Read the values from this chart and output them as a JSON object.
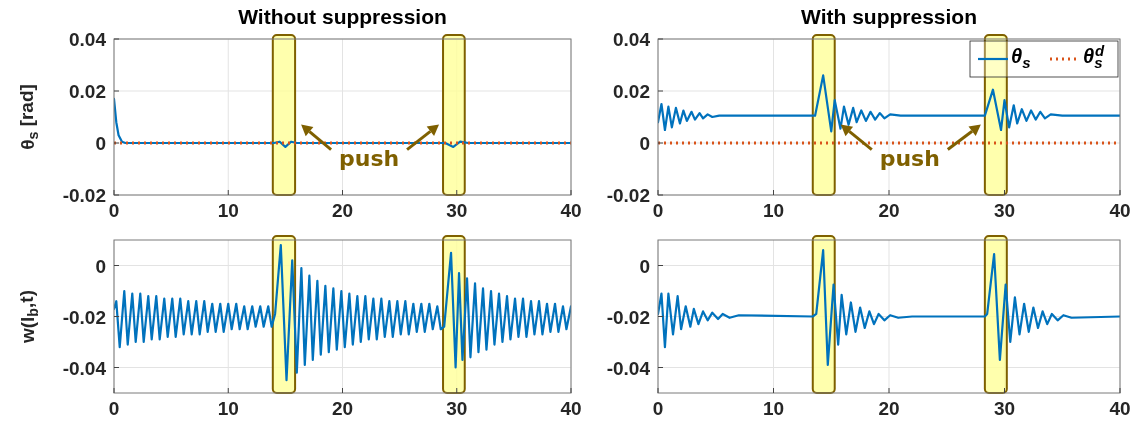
{
  "chart_data": [
    {
      "type": "line",
      "title": "Without suppression",
      "ylabel": "θ$_{s}$ [rad]",
      "xlim": [
        0,
        40
      ],
      "xticks": [
        0,
        10,
        20,
        30,
        40
      ],
      "ylim": [
        -0.02,
        0.04
      ],
      "yticks": [
        -0.02,
        0,
        0.02,
        0.04
      ],
      "grid": true,
      "legend": false,
      "series": [
        {
          "color": "#0072bd",
          "line_style": "solid",
          "x": [
            0,
            0.2,
            0.4,
            0.7,
            1,
            14,
            14.5,
            15,
            15.5,
            16,
            29,
            29.7,
            30.3,
            31,
            40
          ],
          "values": [
            0.017,
            0.008,
            0.003,
            0.0005,
            0,
            0,
            0.0005,
            -0.0015,
            0.0005,
            0,
            0,
            -0.0015,
            0.0005,
            0,
            0
          ]
        },
        {
          "color": "#d95319",
          "line_style": "dotted",
          "x": [
            0,
            40
          ],
          "values": [
            0,
            0
          ]
        }
      ],
      "bands": [
        {
          "axis": "x",
          "from": 13.9,
          "to": 15.85,
          "color": "#ffff99"
        },
        {
          "axis": "x",
          "from": 28.8,
          "to": 30.7,
          "color": "#ffff99"
        }
      ],
      "annotations": [
        "push"
      ]
    },
    {
      "type": "line",
      "title": "With suppression",
      "xlim": [
        0,
        40
      ],
      "xticks": [
        0,
        10,
        20,
        30,
        40
      ],
      "ylim": [
        -0.02,
        0.04
      ],
      "yticks": [
        -0.02,
        0,
        0.02,
        0.04
      ],
      "grid": true,
      "legend": "top right",
      "series": [
        {
          "name": "θ$_{s}$",
          "color": "#0072bd",
          "line_style": "solid",
          "x": [
            0,
            0.3,
            0.6,
            0.9,
            1.2,
            1.55,
            1.9,
            2.2,
            2.5,
            2.9,
            3.2,
            3.6,
            3.9,
            4.3,
            4.7,
            5.3,
            13.6,
            14.3,
            15.0,
            15.3,
            15.8,
            16.1,
            16.5,
            16.9,
            17.2,
            17.6,
            18.0,
            18.4,
            18.8,
            19.2,
            19.6,
            20.1,
            21,
            28.3,
            29.0,
            29.7,
            30.0,
            30.4,
            30.8,
            31.1,
            31.5,
            31.9,
            32.3,
            32.7,
            33.1,
            33.5,
            34.0,
            35,
            40
          ],
          "values": [
            0.008,
            0.015,
            0.005,
            0.014,
            0.006,
            0.0135,
            0.0075,
            0.0125,
            0.0085,
            0.012,
            0.009,
            0.0115,
            0.0095,
            0.011,
            0.01,
            0.0105,
            0.0105,
            0.026,
            0.0045,
            0.0165,
            0.0055,
            0.014,
            0.007,
            0.0135,
            0.008,
            0.0125,
            0.0085,
            0.012,
            0.009,
            0.0115,
            0.0095,
            0.011,
            0.0105,
            0.0105,
            0.0205,
            0.005,
            0.0165,
            0.006,
            0.0145,
            0.0075,
            0.013,
            0.0085,
            0.0125,
            0.009,
            0.012,
            0.0095,
            0.011,
            0.0105,
            0.0105
          ]
        },
        {
          "name": "θ$_{s}$$^{d}$",
          "color": "#d95319",
          "line_style": "dotted",
          "x": [
            0,
            40
          ],
          "values": [
            0,
            0
          ]
        }
      ],
      "bands": [
        {
          "axis": "x",
          "from": 13.4,
          "to": 15.3,
          "color": "#ffff99"
        },
        {
          "axis": "x",
          "from": 28.3,
          "to": 30.2,
          "color": "#ffff99"
        }
      ],
      "annotations": [
        "push"
      ]
    },
    {
      "type": "line",
      "ylabel": "w(l$_{b}$,t)",
      "xlim": [
        0,
        40
      ],
      "xticks": [
        0,
        10,
        20,
        30,
        40
      ],
      "ylim": [
        -0.05,
        0.01
      ],
      "yticks": [
        -0.04,
        -0.02,
        0
      ],
      "grid": true,
      "legend": false,
      "series": [
        {
          "color": "#0072bd",
          "line_style": "solid",
          "x": [
            0,
            0.2,
            0.5,
            0.9,
            1.2,
            1.6,
            1.9,
            2.3,
            2.6,
            3.0,
            3.3,
            3.7,
            4.0,
            4.4,
            4.7,
            5.1,
            5.4,
            5.8,
            6.1,
            6.5,
            6.8,
            7.2,
            7.5,
            7.9,
            8.2,
            8.6,
            8.9,
            9.3,
            9.6,
            10.0,
            10.3,
            10.7,
            11.0,
            11.4,
            11.7,
            12.1,
            12.4,
            12.8,
            13.1,
            13.5,
            13.8,
            14.1,
            14.6,
            15.1,
            15.6,
            16.0,
            16.4,
            16.7,
            17.1,
            17.4,
            17.8,
            18.1,
            18.5,
            18.8,
            19.2,
            19.5,
            19.9,
            20.2,
            20.6,
            20.9,
            21.3,
            21.6,
            22.0,
            22.3,
            22.7,
            23.0,
            23.4,
            23.7,
            24.1,
            24.4,
            24.8,
            25.1,
            25.5,
            25.8,
            26.2,
            26.5,
            26.9,
            27.2,
            27.6,
            27.9,
            28.3,
            28.6,
            28.9,
            29.5,
            29.9,
            30.2,
            30.5,
            30.9,
            31.2,
            31.6,
            31.9,
            32.3,
            32.6,
            33.0,
            33.3,
            33.7,
            34.0,
            34.4,
            34.7,
            35.1,
            35.4,
            35.8,
            36.1,
            36.5,
            36.8,
            37.2,
            37.5,
            37.9,
            38.2,
            38.6,
            38.9,
            39.3,
            39.6,
            40.0
          ],
          "values": [
            -0.017,
            -0.014,
            -0.032,
            -0.01,
            -0.031,
            -0.011,
            -0.03,
            -0.011,
            -0.03,
            -0.012,
            -0.029,
            -0.012,
            -0.029,
            -0.013,
            -0.028,
            -0.013,
            -0.028,
            -0.013,
            -0.027,
            -0.014,
            -0.027,
            -0.014,
            -0.027,
            -0.014,
            -0.026,
            -0.015,
            -0.026,
            -0.015,
            -0.026,
            -0.015,
            -0.025,
            -0.015,
            -0.025,
            -0.016,
            -0.025,
            -0.016,
            -0.024,
            -0.016,
            -0.024,
            -0.016,
            -0.024,
            -0.019,
            0.008,
            -0.045,
            0.002,
            -0.042,
            -0.001,
            -0.039,
            -0.004,
            -0.037,
            -0.006,
            -0.035,
            -0.008,
            -0.034,
            -0.009,
            -0.033,
            -0.01,
            -0.032,
            -0.011,
            -0.031,
            -0.012,
            -0.03,
            -0.012,
            -0.029,
            -0.013,
            -0.029,
            -0.013,
            -0.028,
            -0.014,
            -0.028,
            -0.014,
            -0.027,
            -0.014,
            -0.027,
            -0.015,
            -0.026,
            -0.015,
            -0.026,
            -0.015,
            -0.025,
            -0.016,
            -0.025,
            -0.024,
            0.005,
            -0.04,
            -0.003,
            -0.037,
            -0.005,
            -0.036,
            -0.007,
            -0.034,
            -0.009,
            -0.033,
            -0.01,
            -0.031,
            -0.011,
            -0.03,
            -0.012,
            -0.029,
            -0.013,
            -0.028,
            -0.013,
            -0.028,
            -0.014,
            -0.027,
            -0.014,
            -0.027,
            -0.015,
            -0.026,
            -0.015,
            -0.026,
            -0.016,
            -0.025,
            -0.016
          ]
        }
      ],
      "bands": [
        {
          "axis": "x",
          "from": 13.9,
          "to": 15.85,
          "color": "#ffff99"
        },
        {
          "axis": "x",
          "from": 28.8,
          "to": 30.7,
          "color": "#ffff99"
        }
      ]
    },
    {
      "type": "line",
      "xlim": [
        0,
        40
      ],
      "xticks": [
        0,
        10,
        20,
        30,
        40
      ],
      "ylim": [
        -0.05,
        0.01
      ],
      "yticks": [
        -0.04,
        -0.02,
        0
      ],
      "grid": true,
      "legend": false,
      "series": [
        {
          "color": "#0072bd",
          "line_style": "solid",
          "x": [
            0,
            0.3,
            0.6,
            0.9,
            1.3,
            1.7,
            2.0,
            2.4,
            2.8,
            3.1,
            3.5,
            3.9,
            4.3,
            4.7,
            5.2,
            5.6,
            6.2,
            7,
            13.4,
            13.7,
            14.3,
            14.7,
            15.2,
            15.6,
            15.9,
            16.3,
            16.7,
            17.1,
            17.5,
            17.9,
            18.3,
            18.7,
            19.1,
            19.6,
            20.1,
            20.8,
            22,
            28.3,
            28.5,
            29.1,
            29.6,
            30.1,
            30.5,
            30.9,
            31.3,
            31.7,
            32.1,
            32.5,
            32.9,
            33.3,
            33.7,
            34.1,
            34.6,
            35.1,
            35.8,
            40
          ],
          "values": [
            -0.019,
            -0.011,
            -0.032,
            -0.011,
            -0.027,
            -0.012,
            -0.025,
            -0.016,
            -0.024,
            -0.017,
            -0.023,
            -0.018,
            -0.0215,
            -0.0185,
            -0.021,
            -0.019,
            -0.0205,
            -0.0195,
            -0.02,
            -0.019,
            0.006,
            -0.039,
            -0.0075,
            -0.031,
            -0.0115,
            -0.027,
            -0.0145,
            -0.026,
            -0.0165,
            -0.0245,
            -0.018,
            -0.023,
            -0.019,
            -0.0215,
            -0.0195,
            -0.0205,
            -0.02,
            -0.02,
            -0.019,
            0.0045,
            -0.037,
            -0.0075,
            -0.03,
            -0.0125,
            -0.027,
            -0.015,
            -0.026,
            -0.0165,
            -0.0245,
            -0.018,
            -0.023,
            -0.019,
            -0.0215,
            -0.0195,
            -0.0205,
            -0.02
          ]
        }
      ],
      "bands": [
        {
          "axis": "x",
          "from": 13.4,
          "to": 15.3,
          "color": "#ffff99"
        },
        {
          "axis": "x",
          "from": 28.3,
          "to": 30.2,
          "color": "#ffff99"
        }
      ]
    }
  ]
}
